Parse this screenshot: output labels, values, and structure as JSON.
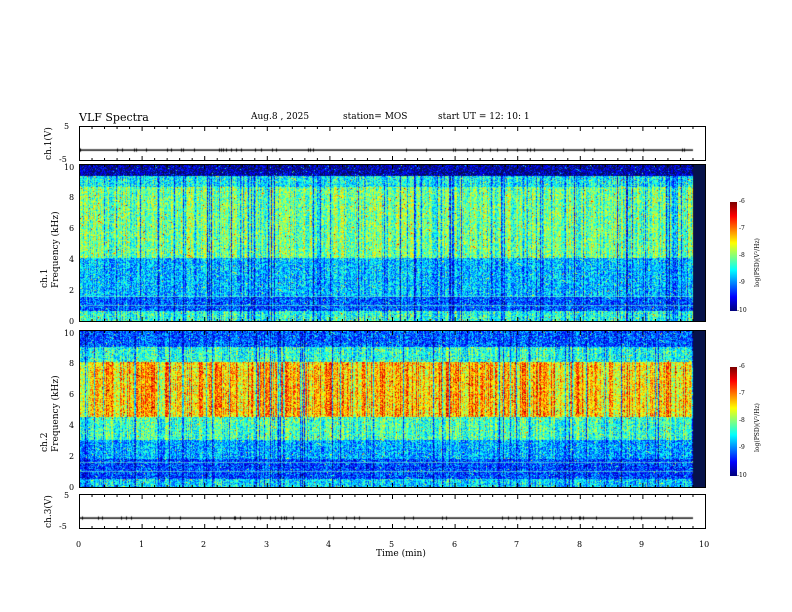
{
  "header": {
    "title": "VLF Spectra",
    "date": "Aug.8 , 2025",
    "station": "station= MOS",
    "start_ut": "start UT = 12: 10: 1"
  },
  "chart_data": [
    {
      "type": "line",
      "name": "ch1-waveform",
      "ylabel": "ch.1(V)",
      "ylim": [
        -5,
        5
      ],
      "yticks": [
        "5",
        "-5"
      ],
      "xlim": [
        0,
        10
      ],
      "level": -2
    },
    {
      "type": "heatmap",
      "name": "ch1-spectrogram",
      "ylabel": "ch.1\nFrequency (kHz)",
      "ylim": [
        0,
        10
      ],
      "yticks": [
        "10",
        "8",
        "6",
        "4",
        "2",
        "0"
      ],
      "xlim": [
        0,
        10
      ],
      "data_extent_min": 9.8,
      "colorbar": {
        "label": "log(PSD)(V²/Hz)",
        "range": [
          -10,
          -6
        ],
        "ticks": [
          "-6",
          "-7",
          "-8",
          "-9",
          "-10"
        ]
      }
    },
    {
      "type": "heatmap",
      "name": "ch2-spectrogram",
      "ylabel": "ch.2\nFrequency (kHz)",
      "ylim": [
        0,
        10
      ],
      "yticks": [
        "10",
        "8",
        "6",
        "4",
        "2",
        "0"
      ],
      "xlim": [
        0,
        10
      ],
      "data_extent_min": 9.8,
      "colorbar": {
        "label": "log(PSD)(V²/Hz)",
        "range": [
          -10,
          -6
        ],
        "ticks": [
          "-6",
          "-7",
          "-8",
          "-9",
          "-10"
        ]
      }
    },
    {
      "type": "line",
      "name": "ch3-waveform",
      "ylabel": "ch.3(V)",
      "ylim": [
        -5,
        5
      ],
      "yticks": [
        "5",
        "-5"
      ],
      "xlim": [
        0,
        10
      ],
      "level": -2
    }
  ],
  "x_axis": {
    "label": "Time (min)",
    "ticks": [
      "0",
      "1",
      "2",
      "3",
      "4",
      "5",
      "6",
      "7",
      "8",
      "9",
      "10"
    ]
  }
}
